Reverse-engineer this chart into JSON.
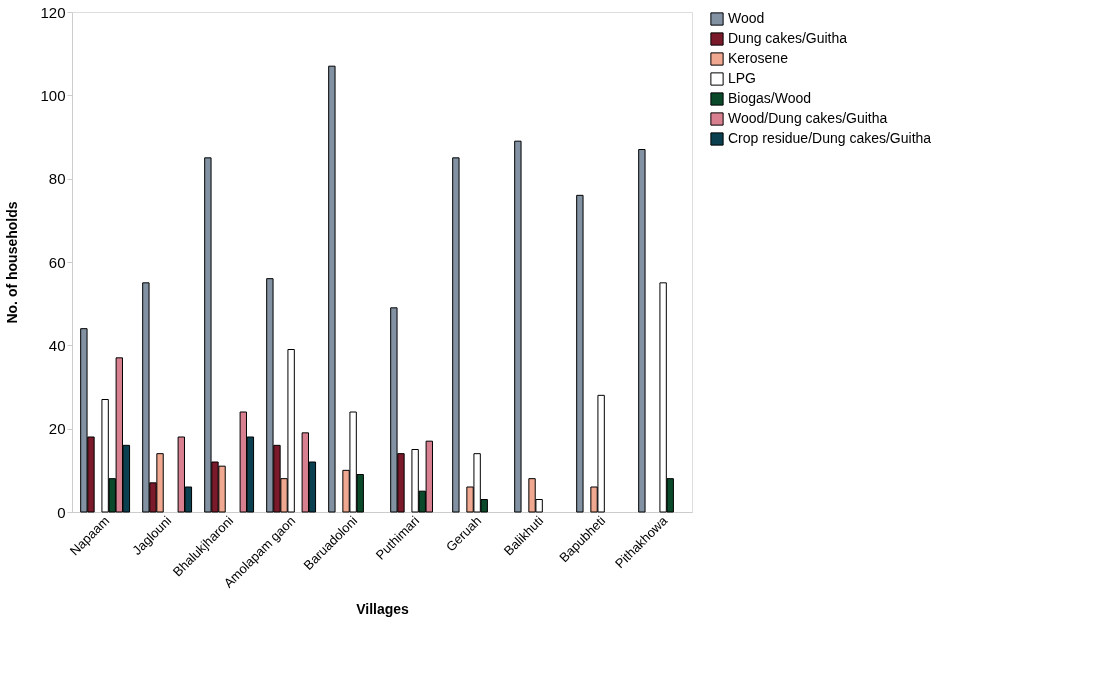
{
  "chart_data": {
    "type": "bar",
    "xlabel": "Villages",
    "ylabel": "No. of households",
    "categories": [
      "Napaam",
      "Jaglouni",
      "Bhalukjharoni",
      "Amolapam gaon",
      "Baruadoloni",
      "Puthimari",
      "Geruah",
      "Balikhuti",
      "Bapubheti",
      "Pithakhowa"
    ],
    "series": [
      {
        "name": "Wood",
        "color": "#8292a2",
        "values": [
          44,
          55,
          85,
          56,
          107,
          49,
          85,
          89,
          76,
          87
        ]
      },
      {
        "name": "Dung cakes/Guitha",
        "color": "#7a1a2a",
        "values": [
          18,
          7,
          12,
          16,
          null,
          14,
          null,
          null,
          null,
          null
        ]
      },
      {
        "name": "Kerosene",
        "color": "#f0a890",
        "values": [
          null,
          14,
          11,
          8,
          10,
          null,
          6,
          8,
          6,
          null
        ]
      },
      {
        "name": "LPG",
        "color": "#ffffff",
        "values": [
          27,
          null,
          null,
          39,
          24,
          15,
          14,
          3,
          28,
          55
        ]
      },
      {
        "name": "Biogas/Wood",
        "color": "#0a4a2a",
        "values": [
          8,
          null,
          null,
          null,
          9,
          5,
          3,
          null,
          null,
          8
        ]
      },
      {
        "name": "Wood/Dung cakes/Guitha",
        "color": "#d88090",
        "values": [
          37,
          18,
          24,
          19,
          null,
          17,
          null,
          null,
          null,
          null
        ]
      },
      {
        "name": "Crop residue/Dung cakes/Guitha",
        "color": "#0a4050",
        "values": [
          16,
          6,
          18,
          12,
          null,
          null,
          null,
          null,
          null,
          null
        ]
      }
    ],
    "ylim": [
      0,
      120
    ],
    "yticks": [
      0,
      20,
      40,
      60,
      80,
      100,
      120
    ],
    "grid": false,
    "legend": "right"
  }
}
